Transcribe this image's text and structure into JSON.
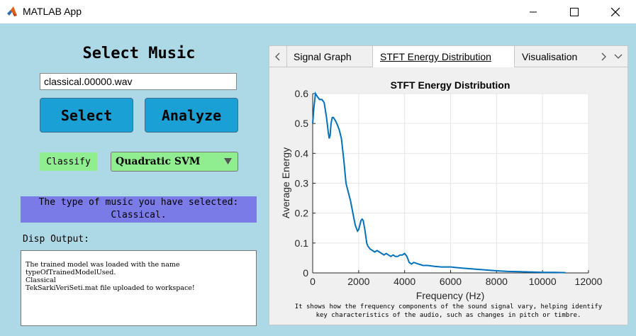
{
  "window": {
    "title": "MATLAB App"
  },
  "main": {
    "heading": "Select Music",
    "file_value": "classical.00000.wav",
    "select_label": "Select",
    "analyze_label": "Analyze",
    "classify_label": "Classify",
    "classifier_selected": "Quadratic SVM",
    "result_line1": "The type of music you have selected:",
    "result_line2": "Classical.",
    "disp_label": "Disp Output:",
    "disp_lines": [
      "The trained model was loaded with the name",
      "typeOfTrainedModelUsed.",
      "Classical",
      "TekSarkiVeriSeti.mat file uploaded to workspace!"
    ]
  },
  "tabs": [
    {
      "label": "Signal Graph"
    },
    {
      "label": "STFT Energy Distribution"
    },
    {
      "label": "Visualisation"
    }
  ],
  "chart_caption_line1": "It shows how the frequency components of the sound signal vary, helping identify",
  "chart_caption_line2": "key characteristics of the audio, such as changes in pitch or timbre.",
  "colors": {
    "background": "#add8e6",
    "button": "#1ba0d6",
    "green": "#90ee90",
    "result": "#7b7be8",
    "line": "#0072bd"
  },
  "chart_data": {
    "type": "line",
    "title": "STFT Energy Distribution",
    "xlabel": "Frequency (Hz)",
    "ylabel": "Average Energy",
    "xlim": [
      0,
      12000
    ],
    "ylim": [
      0,
      0.6
    ],
    "xticks": [
      "0",
      "2000",
      "4000",
      "6000",
      "8000",
      "10000",
      "12000"
    ],
    "yticks": [
      "0",
      "0.1",
      "0.2",
      "0.3",
      "0.4",
      "0.5",
      "0.6"
    ],
    "grid": true,
    "x": [
      0,
      50,
      120,
      200,
      300,
      400,
      500,
      600,
      680,
      720,
      760,
      800,
      850,
      900,
      980,
      1050,
      1150,
      1250,
      1350,
      1450,
      1550,
      1650,
      1750,
      1850,
      1950,
      2000,
      2050,
      2100,
      2150,
      2200,
      2280,
      2350,
      2400,
      2450,
      2500,
      2600,
      2700,
      2800,
      2900,
      3000,
      3100,
      3200,
      3300,
      3400,
      3500,
      3600,
      3700,
      3800,
      3900,
      4000,
      4100,
      4200,
      4300,
      4400,
      4600,
      4800,
      5000,
      5300,
      5600,
      6000,
      6500,
      7000,
      7500,
      8000,
      8500,
      9000,
      9500,
      10000,
      10500,
      11000
    ],
    "y": [
      0.5,
      0.55,
      0.6,
      0.59,
      0.58,
      0.58,
      0.57,
      0.52,
      0.47,
      0.45,
      0.46,
      0.5,
      0.52,
      0.52,
      0.51,
      0.5,
      0.48,
      0.45,
      0.38,
      0.3,
      0.27,
      0.24,
      0.2,
      0.16,
      0.14,
      0.145,
      0.16,
      0.175,
      0.18,
      0.175,
      0.14,
      0.1,
      0.09,
      0.085,
      0.08,
      0.075,
      0.07,
      0.075,
      0.07,
      0.065,
      0.06,
      0.065,
      0.06,
      0.055,
      0.06,
      0.055,
      0.055,
      0.06,
      0.06,
      0.065,
      0.055,
      0.035,
      0.03,
      0.035,
      0.03,
      0.025,
      0.025,
      0.022,
      0.02,
      0.02,
      0.016,
      0.013,
      0.01,
      0.007,
      0.005,
      0.004,
      0.003,
      0.002,
      0.002,
      0.001
    ]
  }
}
